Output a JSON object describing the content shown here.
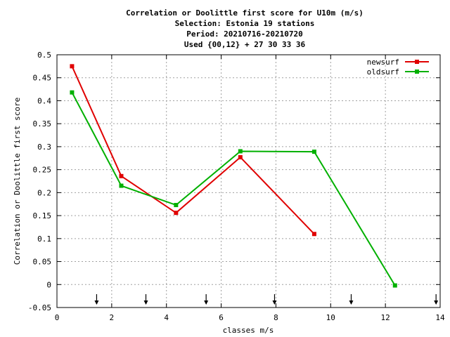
{
  "chart_data": {
    "type": "line",
    "title_lines": [
      "Correlation or Doolittle first score  for U10m (m/s)",
      "Selection: Estonia     19 stations",
      "Period: 20210716-20210720",
      "Used {00,12} + 27 30 33 36"
    ],
    "xlabel": "classes m/s",
    "ylabel": "Correlation or Doolittle first score",
    "xlim": [
      0,
      14
    ],
    "ylim": [
      -0.05,
      0.5
    ],
    "x_ticks": [
      0,
      2,
      4,
      6,
      8,
      10,
      12,
      14
    ],
    "y_ticks": [
      -0.05,
      0,
      0.05,
      0.1,
      0.15,
      0.2,
      0.25,
      0.3,
      0.35,
      0.4,
      0.45,
      0.5
    ],
    "x_tick_labels": [
      "0",
      "2",
      "4",
      "6",
      "8",
      "10",
      "12",
      "14"
    ],
    "y_tick_labels": [
      "-0.05",
      "0",
      "0.05",
      "0.1",
      "0.15",
      "0.2",
      "0.25",
      "0.3",
      "0.35",
      "0.4",
      "0.45",
      "0.5"
    ],
    "grid": true,
    "legend_position": "top-right",
    "class_markers_x": [
      1.45,
      3.25,
      5.45,
      7.95,
      10.75,
      13.85
    ],
    "series": [
      {
        "name": "newsurf",
        "color": "#e00000",
        "x": [
          0.55,
          2.35,
          4.35,
          6.7,
          9.4
        ],
        "y": [
          0.475,
          0.236,
          0.156,
          0.277,
          0.11
        ]
      },
      {
        "name": "oldsurf",
        "color": "#00b000",
        "x": [
          0.55,
          2.35,
          4.35,
          6.7,
          9.4,
          12.35
        ],
        "y": [
          0.418,
          0.215,
          0.173,
          0.29,
          0.289,
          -0.002
        ]
      }
    ]
  }
}
